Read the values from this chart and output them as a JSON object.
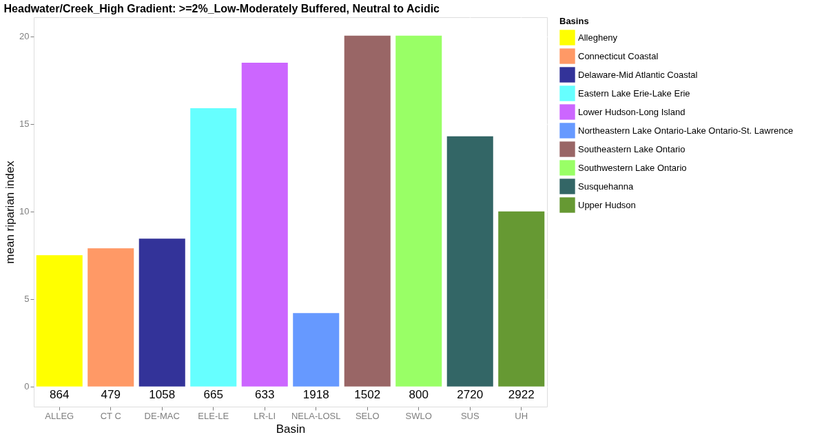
{
  "chart_data": {
    "type": "bar",
    "title": "Headwater/Creek_High Gradient: >=2%_Low-Moderately Buffered, Neutral to Acidic",
    "xlabel": "Basin",
    "ylabel": "mean riparian index",
    "legend_title": "Basins",
    "categories": [
      "ALLEG",
      "CT C",
      "DE-MAC",
      "ELE-LE",
      "LR-LI",
      "NELA-LOSL",
      "SELO",
      "SWLO",
      "SUS",
      "UH"
    ],
    "series": [
      {
        "name": "Allegheny",
        "color": "#ffff00",
        "values": [
          7.5,
          null,
          null,
          null,
          null,
          null,
          null,
          null,
          null,
          null
        ]
      },
      {
        "name": "Connecticut Coastal",
        "color": "#ff9966",
        "values": [
          null,
          7.9,
          null,
          null,
          null,
          null,
          null,
          null,
          null,
          null
        ]
      },
      {
        "name": "Delaware-Mid Atlantic Coastal",
        "color": "#333399",
        "values": [
          null,
          null,
          8.45,
          null,
          null,
          null,
          null,
          null,
          null,
          null
        ]
      },
      {
        "name": "Eastern Lake Erie-Lake Erie",
        "color": "#66ffff",
        "values": [
          null,
          null,
          null,
          15.9,
          null,
          null,
          null,
          null,
          null,
          null
        ]
      },
      {
        "name": "Lower Hudson-Long Island",
        "color": "#cc66ff",
        "values": [
          null,
          null,
          null,
          null,
          18.5,
          null,
          null,
          null,
          null,
          null
        ]
      },
      {
        "name": "Northeastern Lake Ontario-Lake Ontario-St. Lawrence",
        "color": "#6699ff",
        "values": [
          null,
          null,
          null,
          null,
          null,
          4.2,
          null,
          null,
          null,
          null
        ]
      },
      {
        "name": "Southeastern Lake Ontario",
        "color": "#996666",
        "values": [
          null,
          null,
          null,
          null,
          null,
          null,
          20.05,
          null,
          null,
          null
        ]
      },
      {
        "name": "Southwestern Lake Ontario",
        "color": "#99ff66",
        "values": [
          null,
          null,
          null,
          null,
          null,
          null,
          null,
          20.05,
          null,
          null
        ]
      },
      {
        "name": "Susquehanna",
        "color": "#336666",
        "values": [
          null,
          null,
          null,
          null,
          null,
          null,
          null,
          null,
          14.3,
          null
        ]
      },
      {
        "name": "Upper Hudson",
        "color": "#669933",
        "values": [
          null,
          null,
          null,
          null,
          null,
          null,
          null,
          null,
          null,
          10.0
        ]
      }
    ],
    "ylim": [
      -1.15,
      21.1
    ],
    "yticks": [
      0,
      5,
      10,
      15,
      20
    ],
    "grid": true,
    "legend": "right",
    "annotations": [
      "864",
      "479",
      "1058",
      "665",
      "633",
      "1918",
      "1502",
      "800",
      "2720",
      "2922"
    ]
  }
}
